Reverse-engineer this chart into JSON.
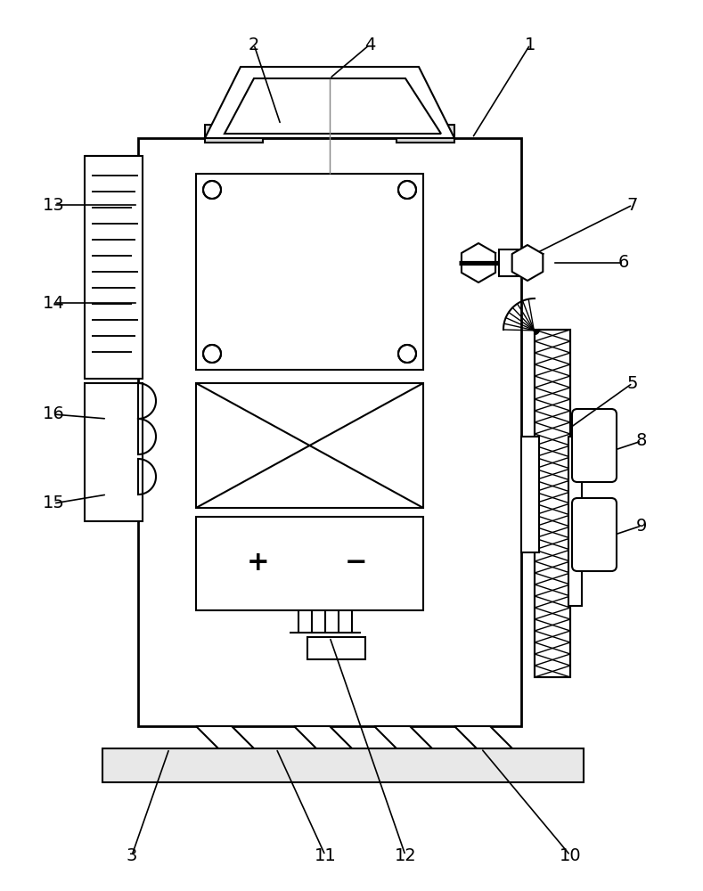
{
  "bg_color": "#ffffff",
  "lc": "#000000",
  "lw": 1.5,
  "fig_w": 7.89,
  "fig_h": 10.0
}
